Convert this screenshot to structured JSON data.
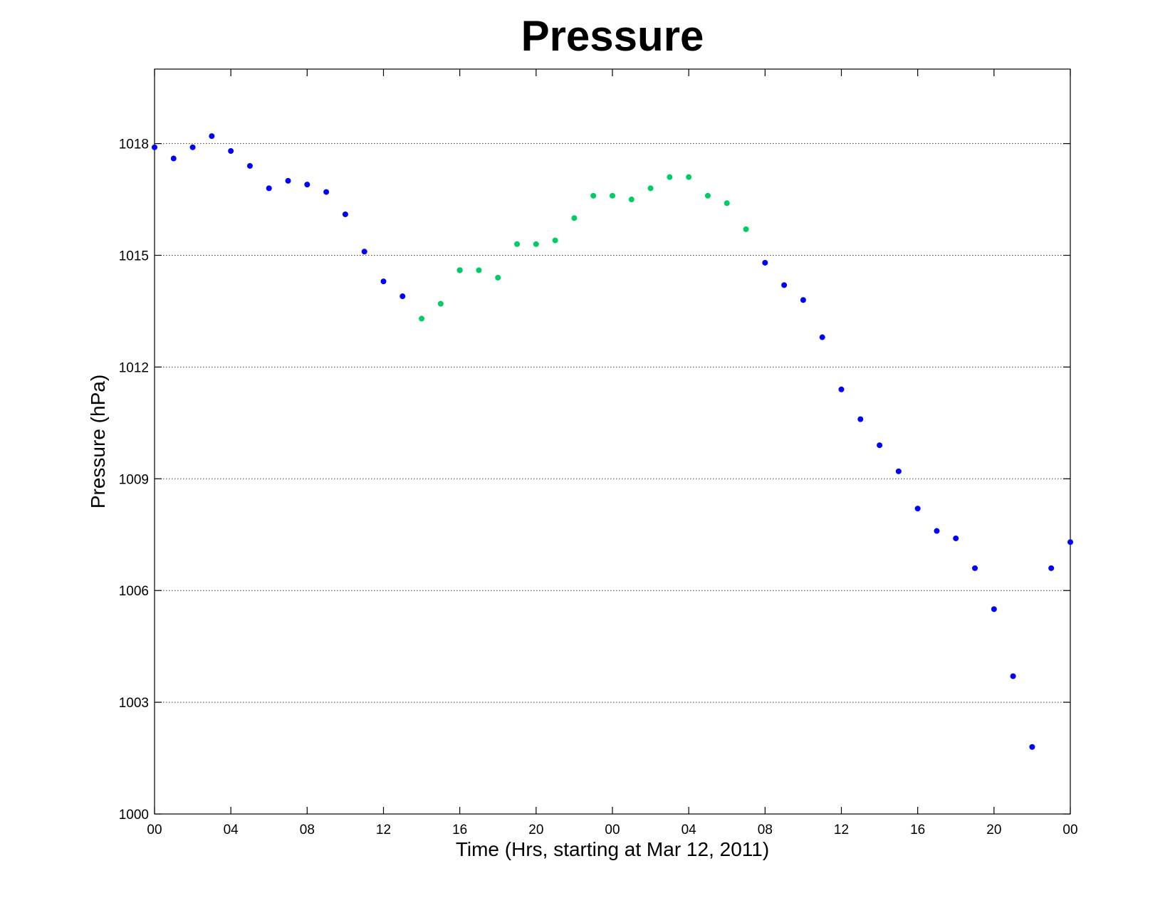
{
  "chart_data": {
    "type": "scatter",
    "title": "Pressure",
    "xlabel": "Time (Hrs, starting at Mar 12, 2011)",
    "ylabel": "Pressure (hPa)",
    "ylim": [
      1000,
      1020
    ],
    "xlim": [
      0,
      48
    ],
    "xtick_values": [
      0,
      4,
      8,
      12,
      16,
      20,
      24,
      28,
      32,
      36,
      40,
      44,
      48
    ],
    "xtick_labels": [
      "00",
      "04",
      "08",
      "12",
      "16",
      "20",
      "00",
      "04",
      "08",
      "12",
      "16",
      "20",
      "00"
    ],
    "ytick_values": [
      1000,
      1003,
      1006,
      1009,
      1012,
      1015,
      1018
    ],
    "ytick_labels": [
      "1000",
      "1003",
      "1006",
      "1009",
      "1012",
      "1015",
      "1018"
    ],
    "grid": "horizontal dotted",
    "series": [
      {
        "color": "#0000ff",
        "points": [
          [
            0,
            1017.9
          ],
          [
            1,
            1017.6
          ],
          [
            2,
            1017.9
          ],
          [
            3,
            1018.2
          ],
          [
            4,
            1017.8
          ],
          [
            5,
            1017.4
          ],
          [
            6,
            1016.8
          ],
          [
            7,
            1017.0
          ],
          [
            8,
            1016.9
          ],
          [
            9,
            1016.7
          ],
          [
            10,
            1016.1
          ],
          [
            11,
            1015.1
          ],
          [
            12,
            1014.3
          ],
          [
            13,
            1013.9
          ],
          [
            16,
            1014.6
          ],
          [
            32,
            1014.8
          ],
          [
            33,
            1014.2
          ],
          [
            34,
            1013.8
          ],
          [
            35,
            1012.8
          ],
          [
            36,
            1011.4
          ],
          [
            37,
            1010.6
          ],
          [
            38,
            1009.9
          ],
          [
            39,
            1009.2
          ],
          [
            40,
            1008.2
          ],
          [
            41,
            1007.6
          ],
          [
            42,
            1007.4
          ],
          [
            43,
            1006.6
          ],
          [
            44,
            1005.5
          ],
          [
            45,
            1003.7
          ],
          [
            46,
            1001.8
          ],
          [
            47,
            1006.6
          ],
          [
            48,
            1007.3
          ]
        ]
      },
      {
        "color": "#00cc66",
        "points": [
          [
            14,
            1013.3
          ],
          [
            15,
            1013.7
          ],
          [
            16,
            1014.6
          ],
          [
            17,
            1014.6
          ],
          [
            18,
            1014.4
          ],
          [
            19,
            1015.3
          ],
          [
            20,
            1015.3
          ],
          [
            21,
            1015.4
          ],
          [
            22,
            1016.0
          ],
          [
            23,
            1016.6
          ],
          [
            24,
            1016.6
          ],
          [
            25,
            1016.5
          ],
          [
            26,
            1016.8
          ],
          [
            27,
            1017.1
          ],
          [
            28,
            1017.1
          ],
          [
            29,
            1016.6
          ],
          [
            30,
            1016.4
          ],
          [
            31,
            1015.7
          ]
        ]
      }
    ]
  }
}
